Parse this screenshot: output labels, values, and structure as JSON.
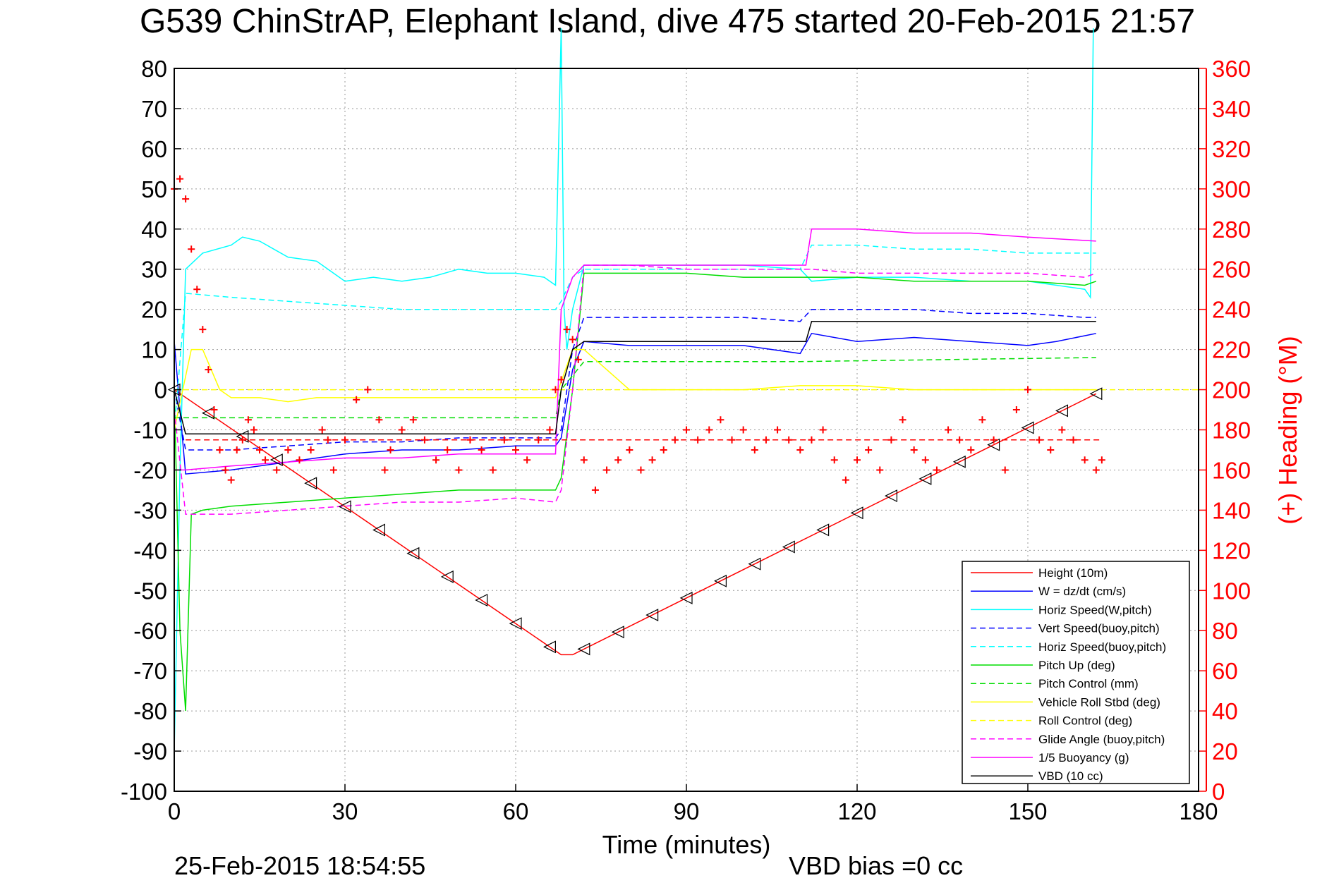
{
  "chart_data": {
    "type": "line",
    "title": "G539 ChinStrAP, Elephant Island, dive 475 started 20-Feb-2015 21:57",
    "xlabel": "Time (minutes)",
    "ylabel": "",
    "y2label": "(+) Heading (°M)",
    "xlim": [
      0,
      180
    ],
    "ylim": [
      -100,
      80
    ],
    "y2lim": [
      0,
      360
    ],
    "grid": true,
    "xticks": [
      "0",
      "30",
      "60",
      "90",
      "120",
      "150",
      "180"
    ],
    "yticks": [
      "80",
      "70",
      "60",
      "50",
      "40",
      "30",
      "20",
      "10",
      "0",
      "-10",
      "-20",
      "-30",
      "-40",
      "-50",
      "-60",
      "-70",
      "-80",
      "-90",
      "-100"
    ],
    "y2ticks": [
      "360",
      "340",
      "320",
      "300",
      "280",
      "260",
      "240",
      "220",
      "200",
      "180",
      "160",
      "140",
      "120",
      "100",
      "80",
      "60",
      "40",
      "20",
      "0"
    ],
    "legend_position": "bottom-right",
    "series": [
      {
        "name": "Height (10m)",
        "color": "#ff0000",
        "dash": "solid",
        "x": [
          0,
          68,
          70,
          162
        ],
        "y": [
          0,
          -66,
          -66,
          -1
        ]
      },
      {
        "name": "W = dz/dt (cm/s)",
        "color": "#0000ff",
        "dash": "solid",
        "x": [
          0,
          1,
          2,
          10,
          20,
          30,
          40,
          50,
          60,
          67,
          68,
          70,
          72,
          80,
          90,
          100,
          110,
          112,
          120,
          130,
          140,
          150,
          155,
          162
        ],
        "y": [
          12,
          -5,
          -21,
          -20,
          -18,
          -16,
          -15,
          -15,
          -14,
          -14,
          -12,
          5,
          12,
          11,
          11,
          11,
          9,
          14,
          12,
          13,
          12,
          11,
          12,
          14
        ]
      },
      {
        "name": "Horiz Speed(W,pitch)",
        "color": "#00ffff",
        "dash": "solid",
        "x": [
          0,
          1,
          2,
          5,
          10,
          12,
          15,
          20,
          25,
          30,
          35,
          40,
          45,
          50,
          55,
          60,
          65,
          67,
          68,
          68.5,
          69,
          70,
          72,
          80,
          90,
          100,
          110,
          112,
          120,
          130,
          140,
          150,
          160,
          161,
          161.5
        ],
        "y": [
          -90,
          -20,
          30,
          34,
          36,
          38,
          37,
          33,
          32,
          27,
          28,
          27,
          28,
          30,
          29,
          29,
          28,
          26,
          90,
          20,
          10,
          20,
          31,
          31,
          31,
          31,
          30,
          27,
          28,
          28,
          27,
          27,
          25,
          23,
          90
        ]
      },
      {
        "name": "Vert Speed(buoy,pitch)",
        "color": "#0000ff",
        "dash": "dash",
        "x": [
          0,
          2,
          10,
          20,
          30,
          40,
          50,
          60,
          67,
          68,
          70,
          72,
          80,
          90,
          100,
          110,
          112,
          120,
          130,
          140,
          150,
          160,
          162
        ],
        "y": [
          0,
          -15,
          -15,
          -14,
          -13,
          -13,
          -12,
          -12,
          -12,
          -10,
          10,
          18,
          18,
          18,
          18,
          17,
          20,
          20,
          20,
          19,
          19,
          18,
          18
        ]
      },
      {
        "name": "Horiz Speed(buoy,pitch)",
        "color": "#00ffff",
        "dash": "dash",
        "x": [
          0,
          2,
          10,
          20,
          30,
          40,
          50,
          60,
          67,
          68,
          70,
          72,
          80,
          90,
          100,
          110,
          112,
          120,
          130,
          140,
          150,
          160,
          162
        ],
        "y": [
          -10,
          24,
          23,
          22,
          21,
          20,
          20,
          20,
          20,
          22,
          28,
          30,
          30,
          30,
          30,
          30,
          36,
          36,
          35,
          35,
          34,
          34,
          34
        ]
      },
      {
        "name": "Pitch Up (deg)",
        "color": "#00dd00",
        "dash": "solid",
        "x": [
          0,
          1,
          2,
          3,
          5,
          10,
          20,
          30,
          40,
          50,
          60,
          67,
          68,
          70,
          72,
          80,
          90,
          100,
          110,
          112,
          120,
          130,
          140,
          150,
          160,
          162
        ],
        "y": [
          0,
          -60,
          -80,
          -31,
          -30,
          -29,
          -28,
          -27,
          -26,
          -25,
          -25,
          -25,
          -22,
          0,
          29,
          29,
          29,
          28,
          28,
          28,
          28,
          27,
          27,
          27,
          26,
          27
        ]
      },
      {
        "name": "Pitch Control (mm)",
        "color": "#00dd00",
        "dash": "dash",
        "x": [
          0,
          2,
          67,
          68,
          72,
          110,
          162
        ],
        "y": [
          -7,
          -7,
          -7,
          0,
          7,
          7,
          8
        ]
      },
      {
        "name": "Vehicle Roll Stbd (deg)",
        "color": "#ffff00",
        "dash": "solid",
        "x": [
          0,
          3,
          5,
          8,
          10,
          15,
          20,
          25,
          30,
          40,
          50,
          60,
          67,
          70,
          72,
          80,
          90,
          100,
          110,
          120,
          130,
          140,
          150,
          160,
          162
        ],
        "y": [
          -10,
          10,
          10,
          0,
          -2,
          -2,
          -3,
          -2,
          -2,
          -2,
          -2,
          -2,
          -2,
          10,
          10,
          0,
          0,
          0,
          1,
          1,
          0,
          0,
          0,
          0,
          0
        ]
      },
      {
        "name": "Roll Control (deg)",
        "color": "#ffff00",
        "dash": "dash",
        "x": [
          0,
          180
        ],
        "y": [
          0,
          0
        ]
      },
      {
        "name": "Glide Angle (buoy,pitch)",
        "color": "#ff00ff",
        "dash": "dash",
        "x": [
          0,
          2,
          10,
          20,
          30,
          40,
          50,
          60,
          67,
          68,
          70,
          72,
          80,
          90,
          100,
          110,
          112,
          120,
          130,
          140,
          150,
          160,
          162
        ],
        "y": [
          -5,
          -31,
          -31,
          -30,
          -29,
          -28,
          -28,
          -27,
          -28,
          -25,
          0,
          31,
          31,
          30,
          30,
          30,
          30,
          29,
          29,
          29,
          29,
          28,
          29
        ]
      },
      {
        "name": "1/5 Buoyancy (g)",
        "color": "#ff00ff",
        "dash": "solid",
        "x": [
          0,
          2,
          10,
          20,
          30,
          40,
          50,
          60,
          67,
          68,
          70,
          72,
          80,
          90,
          100,
          110,
          111,
          112,
          120,
          130,
          140,
          150,
          162
        ],
        "y": [
          -20,
          -20,
          -19,
          -18,
          -17,
          -17,
          -16,
          -16,
          -16,
          20,
          28,
          31,
          31,
          31,
          31,
          31,
          31,
          40,
          40,
          39,
          39,
          38,
          37
        ]
      },
      {
        "name": "VBD (10 cc)",
        "color": "#000000",
        "dash": "solid",
        "x": [
          0,
          2,
          67,
          68,
          70,
          72,
          110,
          111,
          112,
          162
        ],
        "y": [
          0,
          -11,
          -11,
          0,
          10,
          12,
          12,
          12,
          17,
          17
        ]
      }
    ],
    "heading": {
      "color": "#ff0000",
      "marker": "+",
      "x": [
        0,
        1,
        2,
        3,
        4,
        5,
        6,
        7,
        8,
        9,
        10,
        11,
        12,
        13,
        14,
        15,
        16,
        18,
        20,
        22,
        24,
        26,
        27,
        28,
        30,
        32,
        34,
        36,
        37,
        38,
        40,
        42,
        44,
        46,
        48,
        50,
        52,
        54,
        56,
        58,
        60,
        62,
        64,
        66,
        67,
        68,
        69,
        70,
        71,
        72,
        74,
        76,
        78,
        80,
        82,
        84,
        86,
        88,
        90,
        92,
        94,
        96,
        98,
        100,
        102,
        104,
        106,
        108,
        110,
        112,
        114,
        116,
        118,
        120,
        122,
        124,
        126,
        128,
        130,
        132,
        134,
        136,
        138,
        140,
        142,
        144,
        146,
        148,
        150,
        152,
        154,
        156,
        158,
        160,
        162,
        163
      ],
      "y": [
        300,
        305,
        295,
        270,
        250,
        230,
        210,
        190,
        170,
        160,
        155,
        170,
        175,
        185,
        180,
        170,
        165,
        160,
        170,
        165,
        170,
        180,
        175,
        160,
        175,
        195,
        200,
        185,
        160,
        170,
        180,
        185,
        175,
        165,
        170,
        160,
        175,
        170,
        160,
        175,
        170,
        165,
        175,
        180,
        200,
        205,
        230,
        225,
        215,
        165,
        150,
        160,
        165,
        170,
        160,
        165,
        170,
        175,
        180,
        175,
        180,
        185,
        175,
        180,
        170,
        175,
        180,
        175,
        170,
        175,
        180,
        165,
        155,
        165,
        170,
        160,
        175,
        185,
        170,
        165,
        160,
        180,
        175,
        170,
        185,
        175,
        160,
        190,
        200,
        175,
        170,
        180,
        175,
        165,
        160,
        165
      ]
    }
  },
  "footer": {
    "timestamp": "25-Feb-2015 18:54:55",
    "vbd_bias": "VBD bias =0 cc"
  }
}
